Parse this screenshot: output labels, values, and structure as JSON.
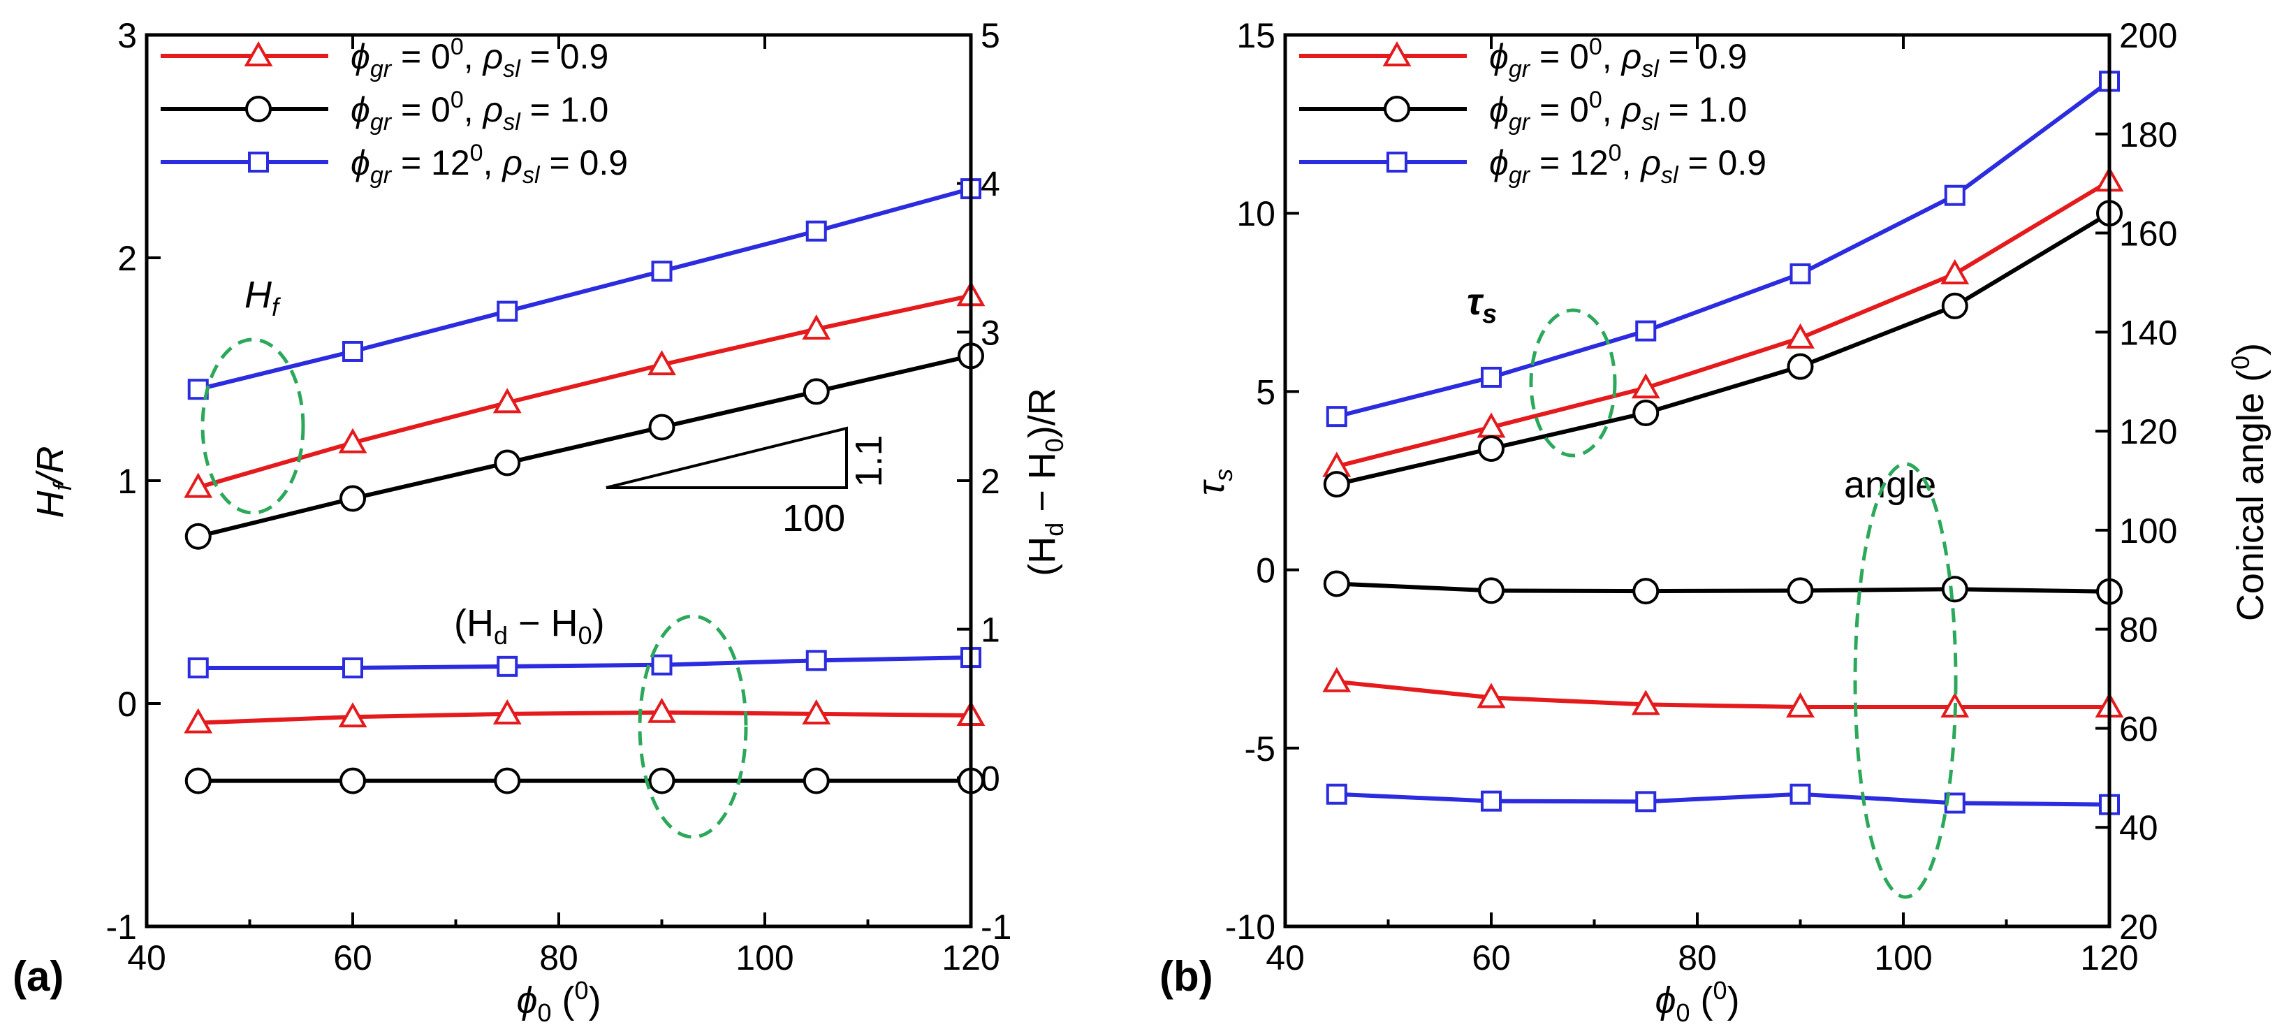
{
  "colors": {
    "red": "#e41a1c",
    "black": "#000000",
    "blue": "#2b2bdf",
    "ellipse": "#2ca85a"
  },
  "chart_data": [
    {
      "type": "line",
      "panel": "(a)",
      "xlabel_main": "ϕ",
      "xlabel_sub": "0",
      "xlabel_unit_open": " (",
      "xlabel_unit_sup": "0",
      "xlabel_unit_close": ")",
      "ylabel_left_main": "H",
      "ylabel_left_sub": "f",
      "ylabel_left_rest": "/R",
      "ylabel_right_open": "(H",
      "ylabel_right_sub1": "d",
      "ylabel_right_mid": " − H",
      "ylabel_right_sub2": "0",
      "ylabel_right_close": ")/R",
      "xlim": [
        40,
        120
      ],
      "ylim_left": [
        -1,
        3
      ],
      "ylim_right": [
        -1,
        5
      ],
      "xticks": [
        40,
        60,
        80,
        100,
        120
      ],
      "yticks_left": [
        -1,
        0,
        1,
        2,
        3
      ],
      "yticks_right": [
        -1,
        0,
        1,
        2,
        3,
        4,
        5
      ],
      "x": [
        45,
        60,
        75,
        90,
        105,
        120
      ],
      "series": [
        {
          "legend_gr": "=   0",
          "legend_sl": "= 0.9",
          "color": "red",
          "marker": "triangle",
          "axis": "left",
          "group": "H_f",
          "values": [
            0.97,
            1.17,
            1.35,
            1.52,
            1.68,
            1.83
          ]
        },
        {
          "color": "black",
          "marker": "circle",
          "axis": "left",
          "group": "H_f",
          "values": [
            0.75,
            0.92,
            1.08,
            1.24,
            1.4,
            1.56
          ]
        },
        {
          "color": "blue",
          "marker": "square",
          "axis": "left",
          "group": "H_f",
          "values": [
            1.41,
            1.58,
            1.76,
            1.94,
            2.12,
            2.31
          ]
        },
        {
          "color": "red",
          "marker": "triangle",
          "axis": "right",
          "group": "Hd-H0",
          "values": [
            0.37,
            0.41,
            0.43,
            0.44,
            0.43,
            0.42
          ]
        },
        {
          "color": "black",
          "marker": "circle",
          "axis": "right",
          "group": "Hd-H0",
          "values": -0.02
        },
        {
          "color": "blue",
          "marker": "square",
          "axis": "right",
          "group": "Hd-H0",
          "values": [
            0.74,
            0.74,
            0.75,
            0.76,
            0.79,
            0.81
          ]
        }
      ],
      "legend": [
        {
          "color": "red",
          "marker": "triangle",
          "gr_val": "=   0",
          "sup": "0",
          "sl_val": " = 0.9"
        },
        {
          "color": "black",
          "marker": "circle",
          "gr_val": "=   0",
          "sup": "0",
          "sl_val": " = 1.0"
        },
        {
          "color": "blue",
          "marker": "square",
          "gr_val": "= 12",
          "sup": "0",
          "sl_val": " = 0.9"
        }
      ],
      "annotations": {
        "hf_main": "H",
        "hf_sub": "f",
        "hd_open": "(H",
        "hd_sub1": "d",
        "hd_mid": " − H",
        "hd_sub2": "0",
        "hd_close": ")",
        "slope_run": "100",
        "slope_rise": "1.1"
      }
    },
    {
      "type": "line",
      "panel": "(b)",
      "xlim": [
        40,
        120
      ],
      "ylim_left": [
        -10,
        15
      ],
      "ylim_right": [
        20,
        200
      ],
      "xticks": [
        40,
        60,
        80,
        100,
        120
      ],
      "yticks_left": [
        -10,
        -5,
        0,
        5,
        10,
        15
      ],
      "yticks_right": [
        20,
        40,
        60,
        80,
        100,
        120,
        140,
        160,
        180,
        200
      ],
      "ylabel_left_main": "τ",
      "ylabel_left_sub": "s",
      "ylabel_right_text": "Conical angle (",
      "ylabel_right_sup": "0",
      "ylabel_right_close": ")",
      "x": [
        45,
        60,
        75,
        90,
        105,
        120
      ],
      "series": [
        {
          "color": "red",
          "marker": "triangle",
          "axis": "left",
          "group": "tau",
          "values": [
            2.9,
            4.0,
            5.1,
            6.5,
            8.3,
            10.9
          ]
        },
        {
          "color": "black",
          "marker": "circle",
          "axis": "left",
          "group": "tau",
          "values": [
            2.4,
            3.4,
            4.4,
            5.7,
            7.4,
            10.0
          ]
        },
        {
          "color": "blue",
          "marker": "square",
          "axis": "left",
          "group": "tau",
          "values": [
            4.3,
            5.4,
            6.7,
            8.3,
            10.5,
            13.7
          ]
        },
        {
          "color": "black",
          "marker": "circle",
          "axis": "right",
          "group": "angle",
          "values": [
            89.2,
            87.8,
            87.7,
            87.8,
            88.1,
            87.6
          ]
        },
        {
          "color": "red",
          "marker": "triangle",
          "axis": "right",
          "group": "angle",
          "values": [
            69.4,
            66.2,
            64.8,
            64.3,
            64.3,
            64.3
          ]
        },
        {
          "color": "blue",
          "marker": "square",
          "axis": "right",
          "group": "angle",
          "values": [
            46.7,
            45.3,
            45.2,
            46.7,
            44.9,
            44.6
          ]
        }
      ],
      "legend": [
        {
          "color": "red",
          "marker": "triangle",
          "gr_val": "=   0",
          "sup": "0",
          "sl_val": " = 0.9"
        },
        {
          "color": "black",
          "marker": "circle",
          "gr_val": "=   0",
          "sup": "0",
          "sl_val": " = 1.0"
        },
        {
          "color": "blue",
          "marker": "square",
          "gr_val": "= 12",
          "sup": "0",
          "sl_val": " = 0.9"
        }
      ],
      "annotations": {
        "tau_main": "τ",
        "tau_sub": "s",
        "angle": "angle"
      }
    }
  ],
  "legend_symbols": {
    "phi": "ϕ",
    "gr": "gr",
    "rho": "ρ",
    "sl": "sl"
  }
}
